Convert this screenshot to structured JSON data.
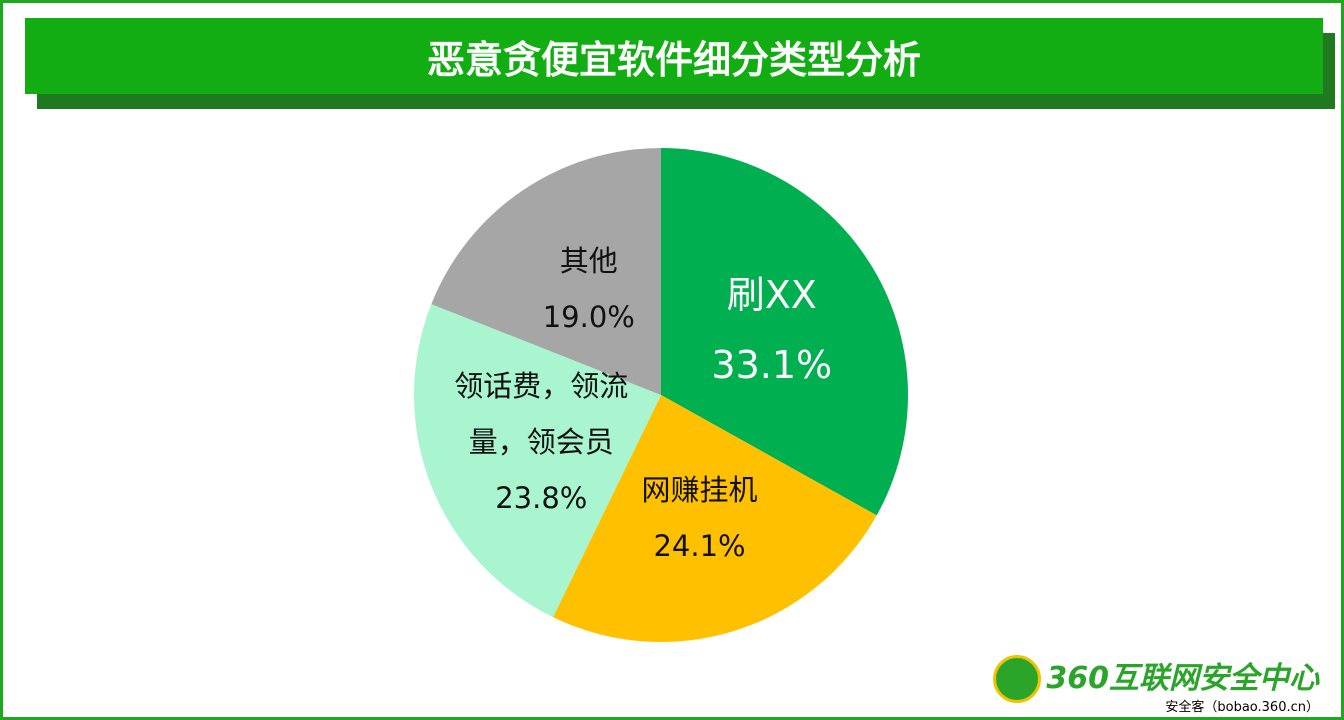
{
  "chart_data": {
    "type": "pie",
    "title": "恶意贪便宜软件细分类型分析",
    "categories": [
      "刷XX",
      "网赚挂机",
      "领话费，领流量，领会员",
      "其他"
    ],
    "values": [
      33.1,
      24.1,
      23.8,
      19.0
    ],
    "value_labels": [
      "33.1%",
      "24.1%",
      "23.8%",
      "19.0%"
    ],
    "colors": [
      "#00b050",
      "#ffc000",
      "#a9f5d0",
      "#a6a6a6"
    ]
  },
  "footer": {
    "logo": "360互联网安全中心",
    "source": "安全客（bobao.360.cn）"
  }
}
